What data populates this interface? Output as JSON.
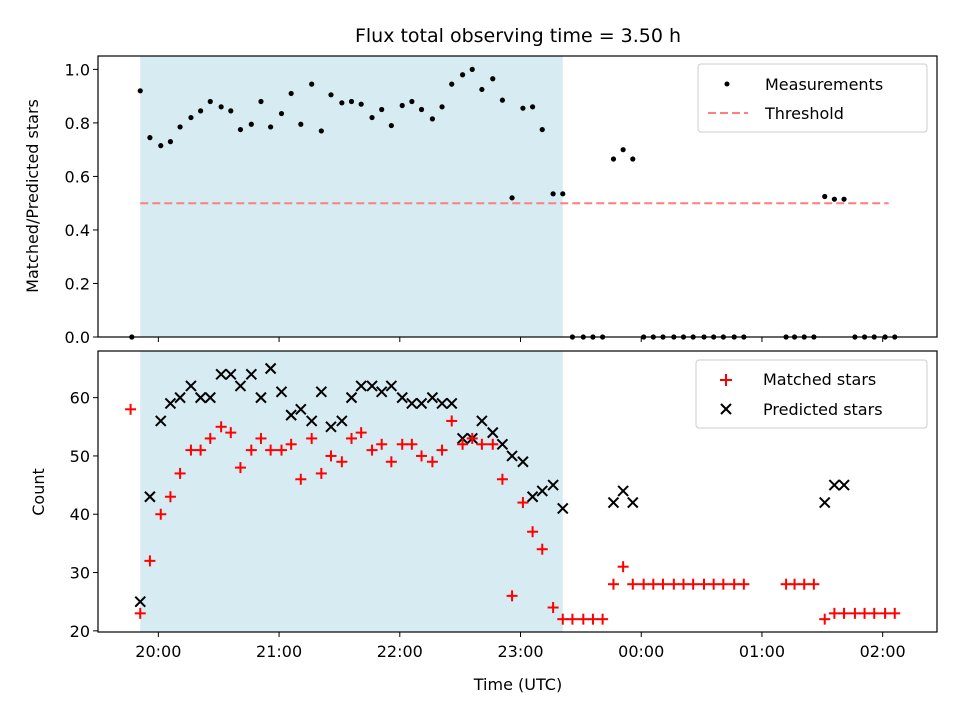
{
  "chart_data": {
    "title": "Flux total observing time = 3.50 h",
    "shaded_range_hours": [
      19.85,
      23.35
    ],
    "x_ticks": [
      {
        "hour": 20.0,
        "label": "20:00"
      },
      {
        "hour": 21.0,
        "label": "21:00"
      },
      {
        "hour": 22.0,
        "label": "22:00"
      },
      {
        "hour": 23.0,
        "label": "23:00"
      },
      {
        "hour": 24.0,
        "label": "00:00"
      },
      {
        "hour": 25.0,
        "label": "01:00"
      },
      {
        "hour": 26.0,
        "label": "02:00"
      }
    ],
    "xlabel": "Time (UTC)",
    "top": {
      "type": "scatter",
      "ylabel": "Matched/Predicted stars",
      "ylim": [
        0,
        1.05
      ],
      "y_ticks": [
        "0.0",
        "0.2",
        "0.4",
        "0.6",
        "0.8",
        "1.0"
      ],
      "threshold": 0.5,
      "threshold_range_hours": [
        19.85,
        26.05
      ],
      "legend": {
        "measurements": "Measurements",
        "threshold": "Threshold"
      },
      "measurements": [
        [
          19.78,
          0.0
        ],
        [
          19.85,
          0.92
        ],
        [
          19.93,
          0.745
        ],
        [
          20.02,
          0.715
        ],
        [
          20.1,
          0.73
        ],
        [
          20.18,
          0.785
        ],
        [
          20.27,
          0.82
        ],
        [
          20.35,
          0.845
        ],
        [
          20.43,
          0.88
        ],
        [
          20.52,
          0.86
        ],
        [
          20.6,
          0.845
        ],
        [
          20.68,
          0.775
        ],
        [
          20.77,
          0.795
        ],
        [
          20.85,
          0.88
        ],
        [
          20.93,
          0.785
        ],
        [
          21.02,
          0.835
        ],
        [
          21.1,
          0.91
        ],
        [
          21.18,
          0.795
        ],
        [
          21.27,
          0.945
        ],
        [
          21.35,
          0.77
        ],
        [
          21.43,
          0.905
        ],
        [
          21.52,
          0.875
        ],
        [
          21.6,
          0.88
        ],
        [
          21.68,
          0.87
        ],
        [
          21.77,
          0.82
        ],
        [
          21.85,
          0.85
        ],
        [
          21.93,
          0.79
        ],
        [
          22.02,
          0.865
        ],
        [
          22.1,
          0.88
        ],
        [
          22.18,
          0.85
        ],
        [
          22.27,
          0.815
        ],
        [
          22.35,
          0.86
        ],
        [
          22.43,
          0.945
        ],
        [
          22.52,
          0.98
        ],
        [
          22.6,
          1.0
        ],
        [
          22.68,
          0.925
        ],
        [
          22.77,
          0.965
        ],
        [
          22.85,
          0.885
        ],
        [
          22.93,
          0.52
        ],
        [
          23.02,
          0.855
        ],
        [
          23.1,
          0.86
        ],
        [
          23.18,
          0.775
        ],
        [
          23.27,
          0.535
        ],
        [
          23.35,
          0.535
        ],
        [
          23.43,
          0.0
        ],
        [
          23.52,
          0.0
        ],
        [
          23.6,
          0.0
        ],
        [
          23.68,
          0.0
        ],
        [
          23.77,
          0.665
        ],
        [
          23.85,
          0.7
        ],
        [
          23.93,
          0.665
        ],
        [
          24.02,
          0.0
        ],
        [
          24.1,
          0.0
        ],
        [
          24.18,
          0.0
        ],
        [
          24.27,
          0.0
        ],
        [
          24.35,
          0.0
        ],
        [
          24.43,
          0.0
        ],
        [
          24.52,
          0.0
        ],
        [
          24.6,
          0.0
        ],
        [
          24.68,
          0.0
        ],
        [
          24.77,
          0.0
        ],
        [
          24.85,
          0.0
        ],
        [
          25.2,
          0.0
        ],
        [
          25.27,
          0.0
        ],
        [
          25.35,
          0.0
        ],
        [
          25.43,
          0.0
        ],
        [
          25.52,
          0.525
        ],
        [
          25.6,
          0.515
        ],
        [
          25.68,
          0.515
        ],
        [
          25.77,
          0.0
        ],
        [
          25.85,
          0.0
        ],
        [
          25.93,
          0.0
        ],
        [
          26.02,
          0.0
        ],
        [
          26.1,
          0.0
        ]
      ]
    },
    "bottom": {
      "type": "scatter",
      "ylabel": "Count",
      "ylim": [
        19.8,
        68
      ],
      "y_ticks": [
        "20",
        "30",
        "40",
        "50",
        "60"
      ],
      "legend": {
        "matched": "Matched stars",
        "predicted": "Predicted stars"
      },
      "matched": [
        [
          19.77,
          58
        ],
        [
          19.85,
          23
        ],
        [
          19.93,
          32
        ],
        [
          20.02,
          40
        ],
        [
          20.1,
          43
        ],
        [
          20.18,
          47
        ],
        [
          20.27,
          51
        ],
        [
          20.35,
          51
        ],
        [
          20.43,
          53
        ],
        [
          20.52,
          55
        ],
        [
          20.6,
          54
        ],
        [
          20.68,
          48
        ],
        [
          20.77,
          51
        ],
        [
          20.85,
          53
        ],
        [
          20.93,
          51
        ],
        [
          21.02,
          51
        ],
        [
          21.1,
          52
        ],
        [
          21.18,
          46
        ],
        [
          21.27,
          53
        ],
        [
          21.35,
          47
        ],
        [
          21.43,
          50
        ],
        [
          21.52,
          49
        ],
        [
          21.6,
          53
        ],
        [
          21.68,
          54
        ],
        [
          21.77,
          51
        ],
        [
          21.85,
          52
        ],
        [
          21.93,
          49
        ],
        [
          22.02,
          52
        ],
        [
          22.1,
          52
        ],
        [
          22.18,
          50
        ],
        [
          22.27,
          49
        ],
        [
          22.35,
          51
        ],
        [
          22.43,
          56
        ],
        [
          22.52,
          52
        ],
        [
          22.6,
          53
        ],
        [
          22.68,
          52
        ],
        [
          22.77,
          52
        ],
        [
          22.85,
          46
        ],
        [
          22.93,
          26
        ],
        [
          23.02,
          42
        ],
        [
          23.1,
          37
        ],
        [
          23.18,
          34
        ],
        [
          23.27,
          24
        ],
        [
          23.35,
          22
        ],
        [
          23.43,
          22
        ],
        [
          23.52,
          22
        ],
        [
          23.6,
          22
        ],
        [
          23.68,
          22
        ],
        [
          23.77,
          28
        ],
        [
          23.85,
          31
        ],
        [
          23.93,
          28
        ],
        [
          24.02,
          28
        ],
        [
          24.1,
          28
        ],
        [
          24.18,
          28
        ],
        [
          24.27,
          28
        ],
        [
          24.35,
          28
        ],
        [
          24.43,
          28
        ],
        [
          24.52,
          28
        ],
        [
          24.6,
          28
        ],
        [
          24.68,
          28
        ],
        [
          24.77,
          28
        ],
        [
          24.85,
          28
        ],
        [
          25.2,
          28
        ],
        [
          25.27,
          28
        ],
        [
          25.35,
          28
        ],
        [
          25.43,
          28
        ],
        [
          25.52,
          22
        ],
        [
          25.6,
          23
        ],
        [
          25.68,
          23
        ],
        [
          25.77,
          23
        ],
        [
          25.85,
          23
        ],
        [
          25.93,
          23
        ],
        [
          26.02,
          23
        ],
        [
          26.1,
          23
        ]
      ],
      "predicted": [
        [
          19.85,
          25
        ],
        [
          19.93,
          43
        ],
        [
          20.02,
          56
        ],
        [
          20.1,
          59
        ],
        [
          20.18,
          60
        ],
        [
          20.27,
          62
        ],
        [
          20.35,
          60
        ],
        [
          20.43,
          60
        ],
        [
          20.52,
          64
        ],
        [
          20.6,
          64
        ],
        [
          20.68,
          62
        ],
        [
          20.77,
          64
        ],
        [
          20.85,
          60
        ],
        [
          20.93,
          65
        ],
        [
          21.02,
          61
        ],
        [
          21.1,
          57
        ],
        [
          21.18,
          58
        ],
        [
          21.27,
          56
        ],
        [
          21.35,
          61
        ],
        [
          21.43,
          55
        ],
        [
          21.52,
          56
        ],
        [
          21.6,
          60
        ],
        [
          21.68,
          62
        ],
        [
          21.77,
          62
        ],
        [
          21.85,
          61
        ],
        [
          21.93,
          62
        ],
        [
          22.02,
          60
        ],
        [
          22.1,
          59
        ],
        [
          22.18,
          59
        ],
        [
          22.27,
          60
        ],
        [
          22.35,
          59
        ],
        [
          22.43,
          59
        ],
        [
          22.52,
          53
        ],
        [
          22.6,
          53
        ],
        [
          22.68,
          56
        ],
        [
          22.77,
          54
        ],
        [
          22.85,
          52
        ],
        [
          22.93,
          50
        ],
        [
          23.02,
          49
        ],
        [
          23.1,
          43
        ],
        [
          23.18,
          44
        ],
        [
          23.27,
          45
        ],
        [
          23.35,
          41
        ],
        [
          23.77,
          42
        ],
        [
          23.85,
          44
        ],
        [
          23.93,
          42
        ],
        [
          25.52,
          42
        ],
        [
          25.6,
          45
        ],
        [
          25.68,
          45
        ]
      ]
    }
  },
  "colors": {
    "shade": "#add8e6",
    "threshold": "#ff7f7f",
    "matched": "#ff0000",
    "predicted": "#000000",
    "measurements": "#000000"
  }
}
